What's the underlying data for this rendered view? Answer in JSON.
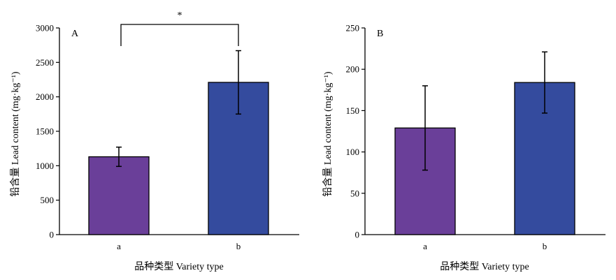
{
  "chart_data": [
    {
      "type": "bar",
      "panel_label": "A",
      "categories": [
        "a",
        "b"
      ],
      "values": [
        1130,
        2210
      ],
      "error": [
        140,
        460
      ],
      "colors": [
        "#6a3f99",
        "#344b9e"
      ],
      "xlabel": "品种类型 Variety type",
      "ylabel": "铅含量 Lead content (mg·kg⁻¹)",
      "ylim": [
        0,
        3000
      ],
      "yticks": [
        0,
        500,
        1000,
        1500,
        2000,
        2500,
        3000
      ],
      "significance": "*",
      "grid": false
    },
    {
      "type": "bar",
      "panel_label": "B",
      "categories": [
        "a",
        "b"
      ],
      "values": [
        129,
        184
      ],
      "error": [
        51,
        37
      ],
      "colors": [
        "#6a3f99",
        "#344b9e"
      ],
      "xlabel": "品种类型 Variety type",
      "ylabel": "铅含量 Lead content (mg·kg⁻¹)",
      "ylim": [
        0,
        250
      ],
      "yticks": [
        0,
        50,
        100,
        150,
        200,
        250
      ],
      "grid": false
    }
  ]
}
